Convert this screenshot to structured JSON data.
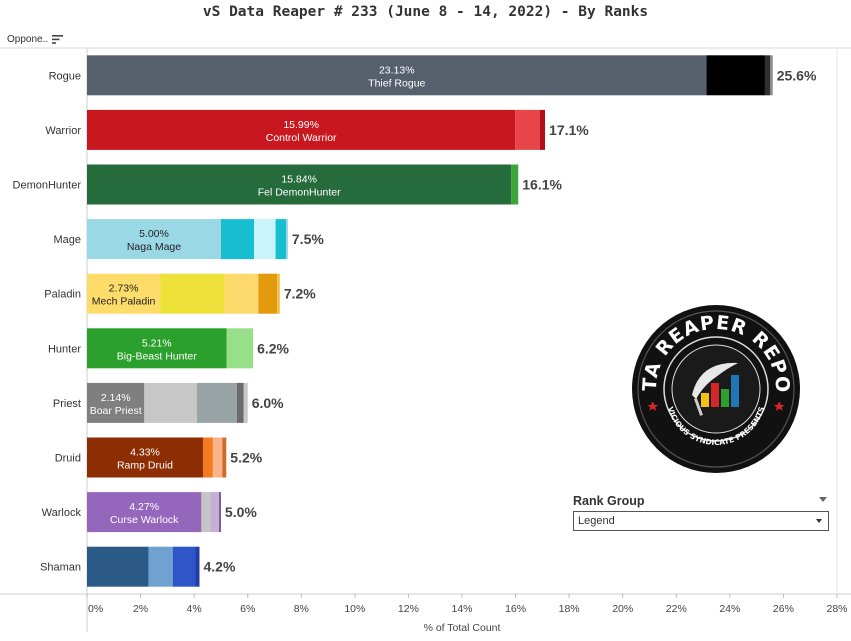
{
  "title": "vS Data Reaper #  233 (June 8 - 14, 2022) - By Ranks",
  "column_header": "Oppone..",
  "icons": {
    "sort": "sort-descending-icon",
    "logo": "data-reaper-report-logo"
  },
  "legend_control": {
    "label": "Rank Group",
    "selected": "Legend"
  },
  "logo": {
    "top_text": "DATA REAPER REPORT",
    "bottom_text": "VICIOUS SYNDICATE PRESENTS"
  },
  "chart_data": {
    "type": "bar",
    "orientation": "horizontal",
    "stacked": true,
    "xlabel": "% of Total Count",
    "xlim": [
      0,
      28
    ],
    "x_ticks": [
      "0%",
      "2%",
      "4%",
      "6%",
      "8%",
      "10%",
      "12%",
      "14%",
      "16%",
      "18%",
      "20%",
      "22%",
      "24%",
      "26%",
      "28%"
    ],
    "grid": false,
    "categories": [
      "Rogue",
      "Warrior",
      "DemonHunter",
      "Mage",
      "Paladin",
      "Hunter",
      "Priest",
      "Druid",
      "Warlock",
      "Shaman"
    ],
    "rows": [
      {
        "class": "Rogue",
        "total_label": "25.6%",
        "top_pct": "23.13%",
        "top_archetype": "Thief Rogue",
        "label_color": "#ffffff",
        "segments": [
          {
            "value": 23.13,
            "color": "#56606c"
          },
          {
            "value": 2.18,
            "color": "#000000"
          },
          {
            "value": 0.19,
            "color": "#2f2f2f"
          },
          {
            "value": 0.1,
            "color": "#8a8a8a"
          }
        ]
      },
      {
        "class": "Warrior",
        "total_label": "17.1%",
        "top_pct": "15.99%",
        "top_archetype": "Control Warrior",
        "label_color": "#ffffff",
        "segments": [
          {
            "value": 15.99,
            "color": "#c8171e"
          },
          {
            "value": 0.92,
            "color": "#e8454a"
          },
          {
            "value": 0.19,
            "color": "#b0101a"
          }
        ]
      },
      {
        "class": "DemonHunter",
        "total_label": "16.1%",
        "top_pct": "15.84%",
        "top_archetype": "Fel DemonHunter",
        "label_color": "#ffffff",
        "segments": [
          {
            "value": 15.84,
            "color": "#266b3c"
          },
          {
            "value": 0.26,
            "color": "#3aa63a"
          }
        ]
      },
      {
        "class": "Mage",
        "total_label": "7.5%",
        "top_pct": "5.00%",
        "top_archetype": "Naga Mage",
        "label_color": "#222222",
        "segments": [
          {
            "value": 5.0,
            "color": "#9bd8e6"
          },
          {
            "value": 1.24,
            "color": "#17becf"
          },
          {
            "value": 0.8,
            "color": "#c8f4fb"
          },
          {
            "value": 0.4,
            "color": "#17becf"
          },
          {
            "value": 0.06,
            "color": "#9bd8e6"
          }
        ]
      },
      {
        "class": "Paladin",
        "total_label": "7.2%",
        "top_pct": "2.73%",
        "top_archetype": "Mech Paladin",
        "label_color": "#222222",
        "segments": [
          {
            "value": 2.73,
            "color": "#fddc6a"
          },
          {
            "value": 2.4,
            "color": "#eee13a"
          },
          {
            "value": 1.27,
            "color": "#fdd86a"
          },
          {
            "value": 0.7,
            "color": "#e39a0c"
          },
          {
            "value": 0.1,
            "color": "#f2c14a"
          }
        ]
      },
      {
        "class": "Hunter",
        "total_label": "6.2%",
        "top_pct": "5.21%",
        "top_archetype": "Big-Beast Hunter",
        "label_color": "#ffffff",
        "segments": [
          {
            "value": 5.21,
            "color": "#2ca02c"
          },
          {
            "value": 0.99,
            "color": "#98df8a"
          }
        ]
      },
      {
        "class": "Priest",
        "total_label": "6.0%",
        "top_pct": "2.14%",
        "top_archetype": "Boar Priest",
        "label_color": "#ffffff",
        "segments": [
          {
            "value": 2.14,
            "color": "#7f7f7f"
          },
          {
            "value": 1.96,
            "color": "#c7c7c7"
          },
          {
            "value": 1.5,
            "color": "#98a3a6"
          },
          {
            "value": 0.25,
            "color": "#6b6b6b"
          },
          {
            "value": 0.15,
            "color": "#c7c7c7"
          }
        ]
      },
      {
        "class": "Druid",
        "total_label": "5.2%",
        "top_pct": "4.33%",
        "top_archetype": "Ramp Druid",
        "label_color": "#ffffff",
        "segments": [
          {
            "value": 4.33,
            "color": "#8c2d04"
          },
          {
            "value": 0.37,
            "color": "#f47a1f"
          },
          {
            "value": 0.35,
            "color": "#f9b48a"
          },
          {
            "value": 0.15,
            "color": "#d06a2a"
          }
        ]
      },
      {
        "class": "Warlock",
        "total_label": "5.0%",
        "top_pct": "4.27%",
        "top_archetype": "Curse Warlock",
        "label_color": "#ffffff",
        "segments": [
          {
            "value": 4.27,
            "color": "#9467bd"
          },
          {
            "value": 0.33,
            "color": "#c5c5c5"
          },
          {
            "value": 0.33,
            "color": "#c5b0d5"
          },
          {
            "value": 0.07,
            "color": "#7b4fa3"
          }
        ]
      },
      {
        "class": "Shaman",
        "total_label": "4.2%",
        "top_pct": "",
        "top_archetype": "",
        "label_color": "#ffffff",
        "segments": [
          {
            "value": 2.3,
            "color": "#2c5a86"
          },
          {
            "value": 0.9,
            "color": "#6fa2d1"
          },
          {
            "value": 0.85,
            "color": "#2f55c9"
          },
          {
            "value": 0.15,
            "color": "#1f3fa3"
          }
        ]
      }
    ]
  }
}
